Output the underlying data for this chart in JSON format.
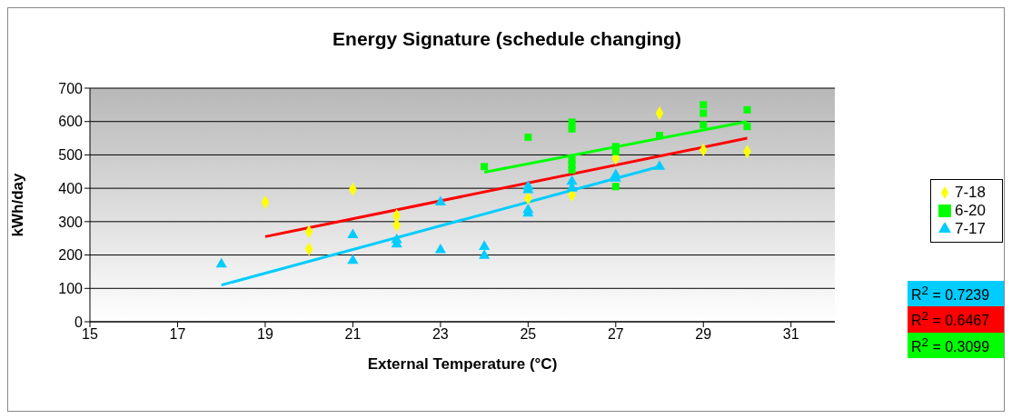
{
  "chart_data": {
    "type": "scatter",
    "title": "Energy Signature (schedule changing)",
    "xlabel": "External Temperature (°C)",
    "ylabel": "kWh/day",
    "xlim": [
      15,
      32
    ],
    "xticks": [
      15,
      17,
      19,
      21,
      23,
      25,
      27,
      29,
      31
    ],
    "ylim": [
      0,
      700
    ],
    "yticks": [
      0,
      100,
      200,
      300,
      400,
      500,
      600,
      700
    ],
    "grid": "y",
    "legend": "right",
    "series": [
      {
        "name": "7-18",
        "color": "#ffff00",
        "marker": "diamond",
        "x": [
          19,
          20,
          20,
          21,
          22,
          22,
          25,
          26,
          27,
          28,
          29,
          30
        ],
        "values": [
          358,
          270,
          218,
          397,
          318,
          290,
          370,
          380,
          490,
          625,
          515,
          510
        ]
      },
      {
        "name": "6-20",
        "color": "#00ff00",
        "marker": "square",
        "x": [
          24,
          25,
          26,
          26,
          26,
          26,
          26,
          27,
          27,
          27,
          28,
          29,
          29,
          29,
          30,
          30
        ],
        "values": [
          465,
          553,
          598,
          578,
          485,
          470,
          455,
          525,
          510,
          405,
          558,
          650,
          625,
          590,
          635,
          585
        ]
      },
      {
        "name": "7-17",
        "color": "#00ccff",
        "marker": "triangle",
        "x": [
          18,
          21,
          21,
          22,
          22,
          23,
          23,
          24,
          24,
          25,
          25,
          25,
          25,
          26,
          26,
          27,
          27,
          28
        ],
        "values": [
          172,
          260,
          183,
          245,
          232,
          358,
          215,
          225,
          198,
          405,
          395,
          335,
          325,
          420,
          400,
          440,
          430,
          465
        ]
      },
      {
        "type": "line",
        "color": "#00ccff",
        "x": [
          18,
          28
        ],
        "values": [
          110,
          465
        ]
      },
      {
        "type": "line",
        "color": "#ff0000",
        "x": [
          19,
          30
        ],
        "values": [
          255,
          550
        ]
      },
      {
        "type": "line",
        "color": "#00ff00",
        "x": [
          24,
          30
        ],
        "values": [
          448,
          600
        ]
      }
    ],
    "annotations": [
      "R$^{2}$ = 0.7239",
      "R$^{2}$ = 0.6467",
      "R$^{2}$ = 0.3099"
    ]
  }
}
